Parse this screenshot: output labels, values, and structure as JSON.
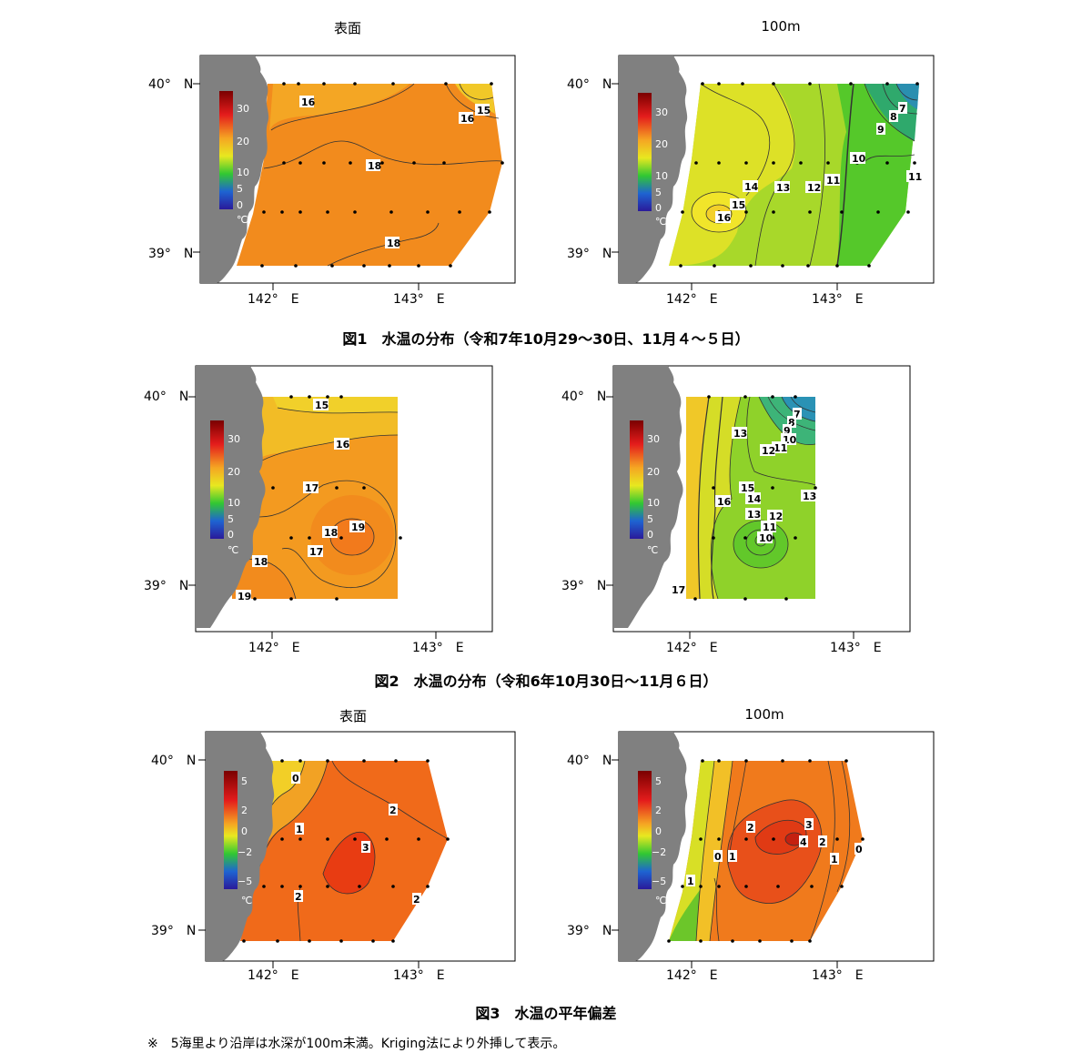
{
  "panels_titles": {
    "p1": "表面",
    "p2": "100m",
    "p5": "表面",
    "p6": "100m"
  },
  "captions": {
    "fig1": "図1　水温の分布（令和7年10月29～30日、11月４～５日）",
    "fig2": "図2　水温の分布（令和6年10月30日～11月６日）",
    "fig3": "図3　水温の平年偏差"
  },
  "note": "※　5海里より沿岸は水深が100m未満。Kriging法により外挿して表示。",
  "axes": {
    "lat40": "40°　N",
    "lat39": "39°　N",
    "lon142": "142°　E",
    "lon143": "143°　E"
  },
  "colorbar_temp": {
    "ticks": [
      "30",
      "20",
      "10",
      "5",
      "0"
    ],
    "unit": "℃"
  },
  "colorbar_anom": {
    "ticks": [
      "5",
      "2",
      "0",
      "−2",
      "−5"
    ],
    "unit": "℃"
  },
  "contour_labels": {
    "p1": [
      "16",
      "16",
      "15",
      "18",
      "18"
    ],
    "p2": [
      "7",
      "8",
      "9",
      "10",
      "11",
      "14",
      "15",
      "16",
      "13",
      "12",
      "11"
    ],
    "p3": [
      "15",
      "16",
      "17",
      "18",
      "19",
      "17",
      "18",
      "19"
    ],
    "p4": [
      "7",
      "8",
      "9",
      "10",
      "11",
      "12",
      "13",
      "15",
      "14",
      "16",
      "13",
      "12",
      "11",
      "10",
      "13",
      "17"
    ],
    "p5": [
      "0",
      "2",
      "1",
      "3",
      "2",
      "2"
    ],
    "p6": [
      "3",
      "2",
      "4",
      "2",
      "0",
      "1",
      "1",
      "0",
      "1"
    ]
  },
  "colors": {
    "land": "#808080",
    "surface_main": "#f28b1d",
    "surface_light": "#f4a624",
    "surface_yellow": "#f1c828",
    "deep_yellow": "#e3e326",
    "deep_green": "#7cd12a",
    "deep_green2": "#55c82a",
    "deep_teal": "#2a9fa8",
    "anom_orange": "#f06a1a",
    "anom_red": "#e83c12",
    "anom_yellow": "#f2cf27"
  }
}
